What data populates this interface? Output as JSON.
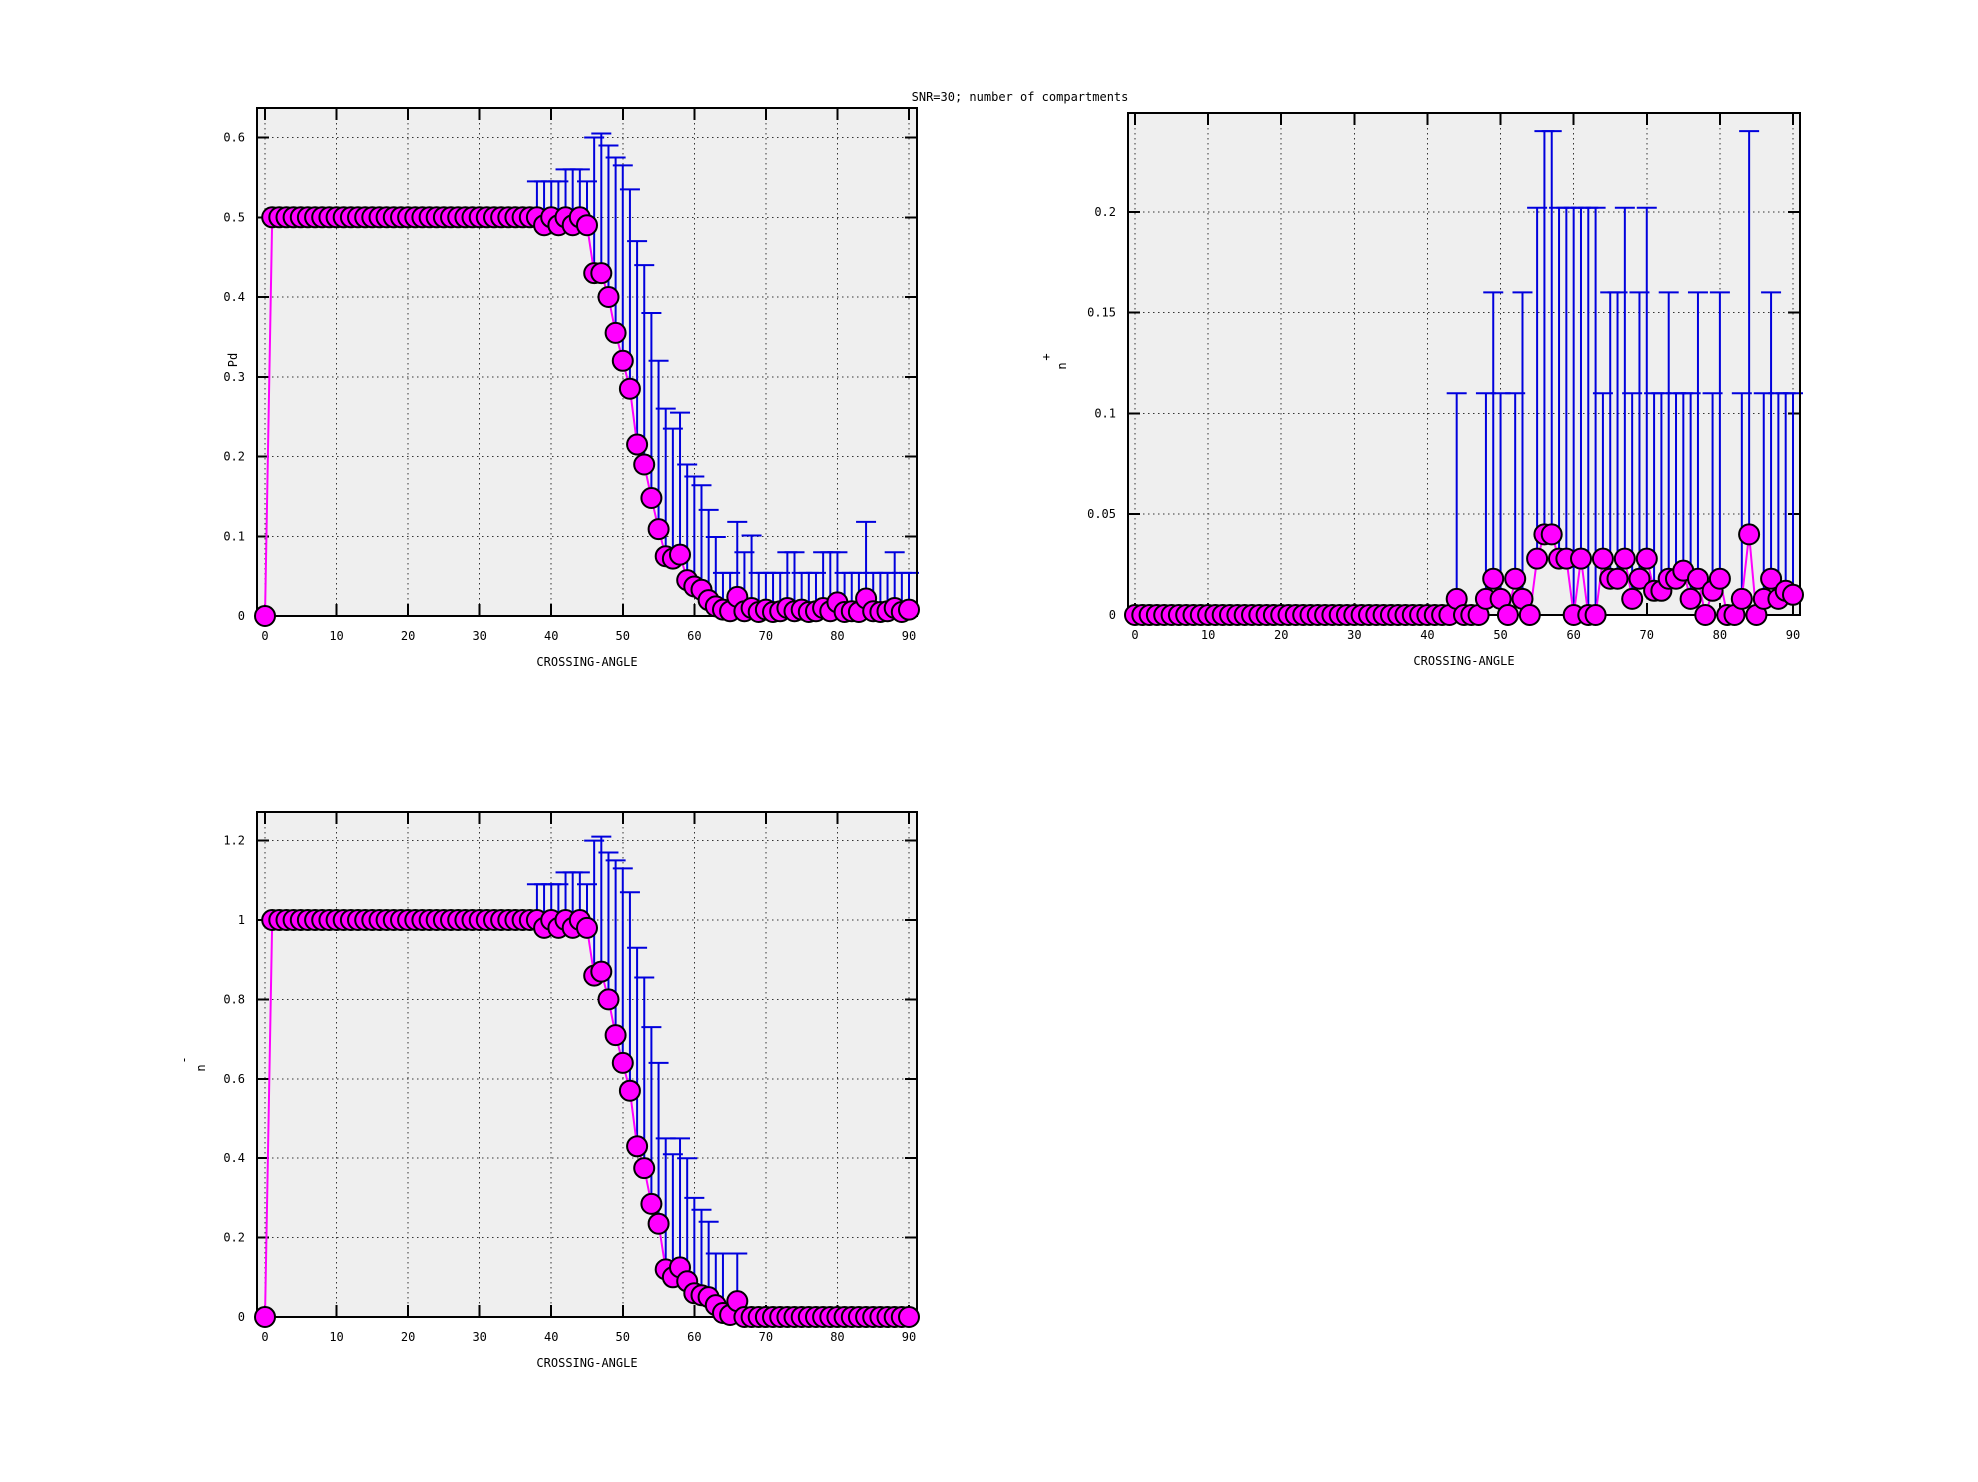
{
  "title": "SNR=30; number of compartments",
  "colors": {
    "marker_fill": "#ff00ff",
    "marker_stroke": "#000000",
    "line": "#ff00ff",
    "errorbar": "#0000dd",
    "frame": "#000000",
    "grid": "#333333",
    "plot_bg": "#efefef",
    "page_bg": "#ffffff",
    "text": "#000000"
  },
  "chart_data": [
    {
      "id": "pd",
      "type": "scatter",
      "xlabel": "CROSSING-ANGLE",
      "ylabel": "Pd",
      "ylabel_sup": "",
      "x": {
        "start": 0,
        "end": 90,
        "step": 1
      },
      "xlim": [
        -1.1,
        91.4
      ],
      "ylim": [
        0,
        0.637
      ],
      "grid": true,
      "legend": "none",
      "xticks": {
        "values": [
          0,
          10,
          20,
          30,
          40,
          50,
          60,
          70,
          80,
          90
        ],
        "labels": [
          "0",
          "10",
          "20",
          "30",
          "40",
          "50",
          "60",
          "70",
          "80",
          "90"
        ]
      },
      "yticks": {
        "values": [
          0,
          0.1,
          0.2,
          0.3,
          0.4,
          0.5,
          0.6
        ],
        "labels": [
          "0",
          "0.1",
          "0.2",
          "0.3",
          "0.4",
          "0.5",
          "0.6"
        ]
      },
      "y": [
        0,
        0.5,
        0.5,
        0.5,
        0.5,
        0.5,
        0.5,
        0.5,
        0.5,
        0.5,
        0.5,
        0.5,
        0.5,
        0.5,
        0.5,
        0.5,
        0.5,
        0.5,
        0.5,
        0.5,
        0.5,
        0.5,
        0.5,
        0.5,
        0.5,
        0.5,
        0.5,
        0.5,
        0.5,
        0.5,
        0.5,
        0.5,
        0.5,
        0.5,
        0.5,
        0.5,
        0.5,
        0.5,
        0.5,
        0.49,
        0.5,
        0.49,
        0.5,
        0.49,
        0.5,
        0.49,
        0.43,
        0.43,
        0.4,
        0.355,
        0.32,
        0.285,
        0.215,
        0.19,
        0.148,
        0.109,
        0.075,
        0.072,
        0.077,
        0.045,
        0.037,
        0.033,
        0.02,
        0.012,
        0.008,
        0.006,
        0.024,
        0.006,
        0.01,
        0.005,
        0.008,
        0.005,
        0.006,
        0.01,
        0.006,
        0.008,
        0.005,
        0.006,
        0.01,
        0.006,
        0.017,
        0.005,
        0.006,
        0.005,
        0.022,
        0.006,
        0.005,
        0.006,
        0.01,
        0.005,
        0.008
      ],
      "ytop": [
        0,
        0.5,
        0.5,
        0.5,
        0.5,
        0.5,
        0.5,
        0.5,
        0.5,
        0.5,
        0.5,
        0.5,
        0.5,
        0.5,
        0.5,
        0.5,
        0.5,
        0.5,
        0.5,
        0.5,
        0.5,
        0.5,
        0.5,
        0.5,
        0.5,
        0.5,
        0.5,
        0.5,
        0.5,
        0.5,
        0.5,
        0.5,
        0.5,
        0.5,
        0.5,
        0.5,
        0.5,
        0.5,
        0.545,
        0.545,
        0.545,
        0.545,
        0.56,
        0.56,
        0.56,
        0.545,
        0.6,
        0.605,
        0.59,
        0.575,
        0.565,
        0.535,
        0.47,
        0.44,
        0.38,
        0.32,
        0.26,
        0.235,
        0.255,
        0.19,
        0.175,
        0.164,
        0.133,
        0.099,
        0.054,
        0.054,
        0.118,
        0.08,
        0.101,
        0.054,
        0.054,
        0.054,
        0.054,
        0.08,
        0.08,
        0.054,
        0.054,
        0.054,
        0.08,
        0.08,
        0.08,
        0.054,
        0.054,
        0.054,
        0.118,
        0.054,
        0.054,
        0.054,
        0.08,
        0.054,
        0.054
      ]
    },
    {
      "id": "n-plus",
      "type": "scatter",
      "xlabel": "CROSSING-ANGLE",
      "ylabel": "n",
      "ylabel_sup": "+",
      "x": {
        "start": 0,
        "end": 90,
        "step": 1
      },
      "xlim": [
        -1.0,
        91.1
      ],
      "ylim": [
        0,
        0.249
      ],
      "grid": true,
      "legend": "none",
      "xticks": {
        "values": [
          0,
          10,
          20,
          30,
          40,
          50,
          60,
          70,
          80,
          90
        ],
        "labels": [
          "0",
          "10",
          "20",
          "30",
          "40",
          "50",
          "60",
          "70",
          "80",
          "90"
        ]
      },
      "yticks": {
        "values": [
          0,
          0.05,
          0.1,
          0.15,
          0.2
        ],
        "labels": [
          "0",
          "0.05",
          "0.1",
          "0.15",
          "0.2"
        ]
      },
      "y": [
        0,
        0,
        0,
        0,
        0,
        0,
        0,
        0,
        0,
        0,
        0,
        0,
        0,
        0,
        0,
        0,
        0,
        0,
        0,
        0,
        0,
        0,
        0,
        0,
        0,
        0,
        0,
        0,
        0,
        0,
        0,
        0,
        0,
        0,
        0,
        0,
        0,
        0,
        0,
        0,
        0,
        0,
        0,
        0,
        0.008,
        0,
        0,
        0,
        0.008,
        0.018,
        0.008,
        0,
        0.018,
        0.008,
        0,
        0.028,
        0.04,
        0.04,
        0.028,
        0.028,
        0,
        0.028,
        0,
        0,
        0.028,
        0.018,
        0.018,
        0.028,
        0.008,
        0.018,
        0.028,
        0.012,
        0.012,
        0.018,
        0.018,
        0.022,
        0.008,
        0.018,
        0,
        0.012,
        0.018,
        0,
        0,
        0.008,
        0.04,
        0,
        0.008,
        0.018,
        0.008,
        0.012,
        0.01
      ],
      "ytop": [
        0,
        0,
        0,
        0,
        0,
        0,
        0,
        0,
        0,
        0,
        0,
        0,
        0,
        0,
        0,
        0,
        0,
        0,
        0,
        0,
        0,
        0,
        0,
        0,
        0,
        0,
        0,
        0,
        0,
        0,
        0,
        0,
        0,
        0,
        0,
        0,
        0,
        0,
        0,
        0,
        0,
        0,
        0,
        0,
        0.11,
        0,
        0,
        0,
        0.11,
        0.16,
        0.11,
        0,
        0.11,
        0.16,
        0,
        0.202,
        0.24,
        0.24,
        0.202,
        0.202,
        0.202,
        0.202,
        0.202,
        0.202,
        0.11,
        0.16,
        0.16,
        0.202,
        0.11,
        0.16,
        0.202,
        0.11,
        0.11,
        0.16,
        0.11,
        0.11,
        0.11,
        0.16,
        0,
        0.11,
        0.16,
        0,
        0,
        0.11,
        0.24,
        0,
        0.11,
        0.16,
        0.11,
        0.11,
        0.11
      ]
    },
    {
      "id": "n-minus",
      "type": "scatter",
      "xlabel": "CROSSING-ANGLE",
      "ylabel": "n",
      "ylabel_sup": "-",
      "x": {
        "start": 0,
        "end": 90,
        "step": 1
      },
      "xlim": [
        -1.1,
        91.4
      ],
      "ylim": [
        0,
        1.272
      ],
      "grid": true,
      "legend": "none",
      "xticks": {
        "values": [
          0,
          10,
          20,
          30,
          40,
          50,
          60,
          70,
          80,
          90
        ],
        "labels": [
          "0",
          "10",
          "20",
          "30",
          "40",
          "50",
          "60",
          "70",
          "80",
          "90"
        ]
      },
      "yticks": {
        "values": [
          0,
          0.2,
          0.4,
          0.6,
          0.8,
          1,
          1.2
        ],
        "labels": [
          "0",
          "0.2",
          "0.4",
          "0.6",
          "0.8",
          "1",
          "1.2"
        ]
      },
      "y": [
        0,
        1,
        1,
        1,
        1,
        1,
        1,
        1,
        1,
        1,
        1,
        1,
        1,
        1,
        1,
        1,
        1,
        1,
        1,
        1,
        1,
        1,
        1,
        1,
        1,
        1,
        1,
        1,
        1,
        1,
        1,
        1,
        1,
        1,
        1,
        1,
        1,
        1,
        1,
        0.98,
        1,
        0.98,
        1,
        0.98,
        1,
        0.98,
        0.86,
        0.87,
        0.8,
        0.71,
        0.64,
        0.57,
        0.43,
        0.375,
        0.285,
        0.235,
        0.12,
        0.1,
        0.125,
        0.09,
        0.06,
        0.055,
        0.05,
        0.03,
        0.01,
        0.005,
        0.04,
        0,
        0,
        0,
        0,
        0,
        0,
        0,
        0,
        0,
        0,
        0,
        0,
        0,
        0,
        0,
        0,
        0,
        0,
        0,
        0,
        0,
        0,
        0,
        0
      ],
      "ytop": [
        0,
        1,
        1,
        1,
        1,
        1,
        1,
        1,
        1,
        1,
        1,
        1,
        1,
        1,
        1,
        1,
        1,
        1,
        1,
        1,
        1,
        1,
        1,
        1,
        1,
        1,
        1,
        1,
        1,
        1,
        1,
        1,
        1,
        1,
        1,
        1,
        1,
        1,
        1.09,
        1.09,
        1.09,
        1.09,
        1.12,
        1.12,
        1.12,
        1.09,
        1.2,
        1.21,
        1.17,
        1.15,
        1.13,
        1.07,
        0.93,
        0.855,
        0.73,
        0.64,
        0.45,
        0.41,
        0.45,
        0.4,
        0.3,
        0.27,
        0.24,
        0.16,
        0.16,
        0.005,
        0.16,
        0,
        0,
        0,
        0,
        0,
        0,
        0,
        0,
        0,
        0,
        0,
        0,
        0,
        0,
        0,
        0,
        0,
        0,
        0,
        0,
        0,
        0,
        0,
        0
      ]
    }
  ]
}
